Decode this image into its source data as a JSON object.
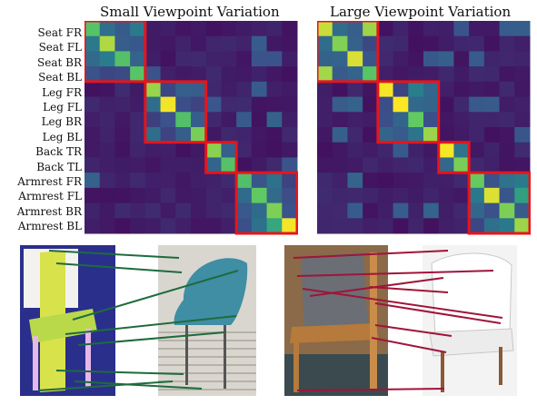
{
  "figure": {
    "titles": {
      "small": "Small Viewpoint Variation",
      "large": "Large Viewpoint Variation"
    },
    "row_labels": [
      "Seat FR",
      "Seat FL",
      "Seat BR",
      "Seat BL",
      "Leg FR",
      "Leg FL",
      "Leg BR",
      "Leg BL",
      "Back TR",
      "Back TL",
      "Armrest FR",
      "Armrest FL",
      "Armrest BR",
      "Armrest BL"
    ],
    "groups": [
      {
        "name": "Seat",
        "start": 0,
        "size": 4
      },
      {
        "name": "Leg",
        "start": 4,
        "size": 4
      },
      {
        "name": "Back",
        "start": 8,
        "size": 2
      },
      {
        "name": "Armrest",
        "start": 10,
        "size": 4
      }
    ],
    "colormap": "viridis",
    "group_box_color": "#e8141a",
    "small_matrix_peaks": [
      [
        0,
        0
      ],
      [
        1,
        1
      ],
      [
        2,
        2
      ],
      [
        3,
        3
      ],
      [
        4,
        4
      ],
      [
        5,
        5
      ],
      [
        6,
        6
      ],
      [
        7,
        7
      ],
      [
        8,
        8
      ],
      [
        9,
        9
      ],
      [
        10,
        10
      ],
      [
        11,
        11
      ],
      [
        12,
        12
      ],
      [
        13,
        13
      ]
    ],
    "large_matrix_peaks": [
      [
        0,
        0
      ],
      [
        1,
        1
      ],
      [
        2,
        2
      ],
      [
        3,
        3
      ],
      [
        0,
        3
      ],
      [
        3,
        0
      ],
      [
        4,
        4
      ],
      [
        5,
        5
      ],
      [
        6,
        6
      ],
      [
        7,
        7
      ],
      [
        8,
        8
      ],
      [
        9,
        9
      ],
      [
        10,
        10
      ],
      [
        11,
        11
      ],
      [
        12,
        12
      ],
      [
        13,
        13
      ]
    ],
    "correspondence_colors": {
      "small": "#1e6b3e",
      "large": "#a0143a"
    }
  }
}
